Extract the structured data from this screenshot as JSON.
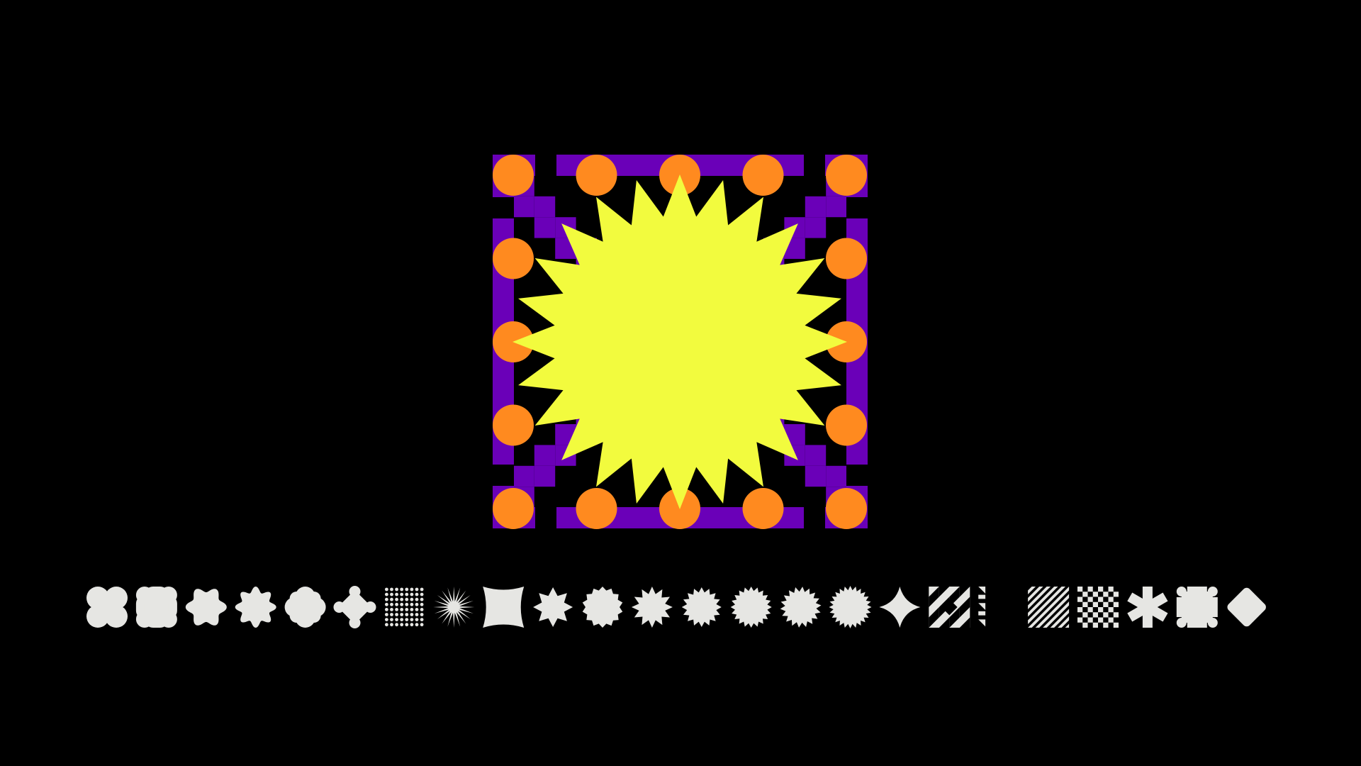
{
  "colors": {
    "background": "#000000",
    "purple": "#6a00b8",
    "orange": "#ff8a1f",
    "yellow": "#f2fb3e",
    "swatch": "#e6e6e3"
  },
  "hero": {
    "label": "",
    "burst_points": 24,
    "dot_grid": [
      5,
      5
    ]
  },
  "shapes": [
    {
      "id": "quad-blob",
      "icon": "quad-blob-icon"
    },
    {
      "id": "squircle-cross",
      "icon": "squircle-cross-icon"
    },
    {
      "id": "flower-6",
      "icon": "flower-6-icon"
    },
    {
      "id": "flower-8",
      "icon": "flower-8-icon"
    },
    {
      "id": "plus-rounded",
      "icon": "plus-rounded-icon"
    },
    {
      "id": "scalloped-diamond",
      "icon": "scalloped-diamond-icon"
    },
    {
      "id": "dot-grid",
      "icon": "dot-grid-icon"
    },
    {
      "id": "sunburst-thin",
      "icon": "sunburst-thin-icon"
    },
    {
      "id": "pinched-square",
      "icon": "pinched-square-icon"
    },
    {
      "id": "star-8-concave",
      "icon": "star-8-concave-icon"
    },
    {
      "id": "gear-circle",
      "icon": "gear-circle-icon"
    },
    {
      "id": "star-12",
      "icon": "star-12-icon"
    },
    {
      "id": "star-16",
      "icon": "star-16-icon"
    },
    {
      "id": "star-20",
      "icon": "star-20-icon"
    },
    {
      "id": "star-20-soft",
      "icon": "star-20-soft-icon"
    },
    {
      "id": "star-24",
      "icon": "star-24-icon"
    },
    {
      "id": "sparkle-4",
      "icon": "sparkle-4-icon"
    },
    {
      "id": "triangle-mosaic",
      "icon": "triangle-mosaic-icon"
    },
    {
      "id": "diagonal-stairs",
      "icon": "diagonal-stairs-icon"
    },
    {
      "id": "diagonal-stripes",
      "icon": "diagonal-stripes-icon"
    },
    {
      "id": "checkerboard",
      "icon": "checkerboard-icon"
    },
    {
      "id": "asterisk-block",
      "icon": "asterisk-block-icon"
    },
    {
      "id": "stepped-cross",
      "icon": "stepped-cross-icon"
    },
    {
      "id": "rounded-diamond",
      "icon": "rounded-diamond-icon"
    }
  ]
}
